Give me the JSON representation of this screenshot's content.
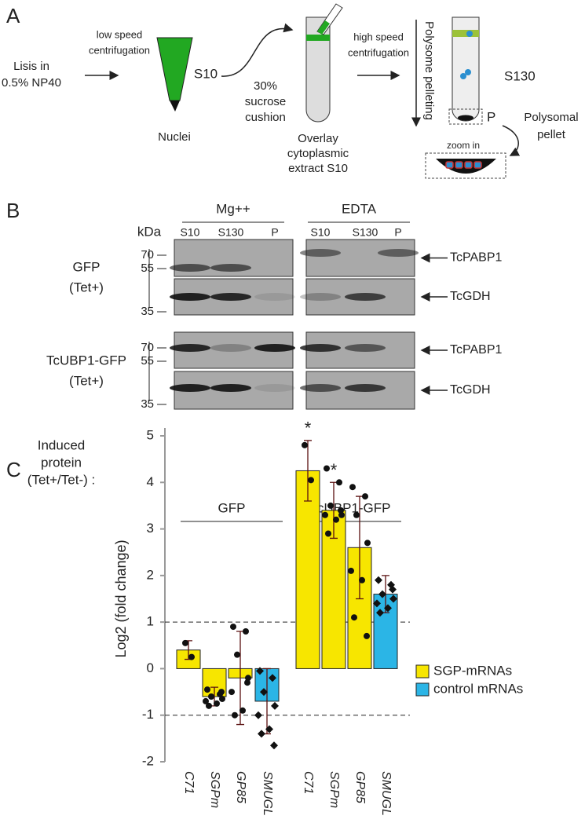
{
  "panel_a": {
    "label": "A",
    "lysis": [
      "Lisis in",
      "0.5% NP40"
    ],
    "low_speed": [
      "low speed",
      "centrifugation"
    ],
    "nuclei": "Nuclei",
    "s10": "S10",
    "cushion": [
      "30%",
      "sucrose",
      "cushion"
    ],
    "overlay": [
      "Overlay",
      "cytoplasmic",
      "extract S10"
    ],
    "high_speed": [
      "high speed",
      "centrifugation"
    ],
    "pelleting": "Polysome pelleting",
    "s130": "S130",
    "p": "P",
    "zoom": "zoom in",
    "pellet": [
      "Polysomal",
      "pellet"
    ]
  },
  "panel_b": {
    "label": "B",
    "kda": "kDa",
    "conditions": [
      "Mg++",
      "EDTA"
    ],
    "lanes": [
      "S10",
      "S130",
      "P",
      "S10",
      "S130",
      "P"
    ],
    "rows": [
      {
        "name": [
          "GFP",
          "(Tet+)"
        ],
        "markers": [
          "70",
          "55",
          "35"
        ]
      },
      {
        "name": [
          "TcUBP1-GFP",
          "(Tet+)"
        ],
        "markers": [
          "70",
          "55",
          "35"
        ]
      }
    ],
    "proteins": [
      "TcPABP1",
      "TcGDH",
      "TcPABP1",
      "TcGDH"
    ]
  },
  "chart_data": {
    "type": "bar",
    "panel_label": "C",
    "ylabel_top": [
      "Induced",
      "protein",
      "(Tet+/Tet-) :"
    ],
    "ylabel": "Log2 (fold change)",
    "groups": [
      "GFP",
      "TcUBP1-GFP"
    ],
    "categories": [
      "C71",
      "SGPm",
      "GP85",
      "SMUGL",
      "C71",
      "SGPm",
      "GP85",
      "SMUGL"
    ],
    "series": [
      {
        "name": "SGP-mRNAs",
        "color": "#f7e600",
        "values": [
          0.4,
          -0.6,
          -0.2,
          null,
          4.25,
          3.4,
          2.6,
          null
        ],
        "errors": [
          0.2,
          0.2,
          1.0,
          null,
          0.65,
          0.6,
          1.1,
          null
        ]
      },
      {
        "name": "control mRNAs",
        "color": "#2bb5e6",
        "values": [
          null,
          null,
          null,
          -0.7,
          null,
          null,
          null,
          1.6
        ],
        "errors": [
          null,
          null,
          null,
          0.7,
          null,
          null,
          null,
          0.4
        ]
      }
    ],
    "points": [
      [
        0.55,
        0.25
      ],
      [
        -0.45,
        -0.55,
        -0.6,
        -0.65,
        -0.7,
        -0.75,
        -0.8,
        -0.5
      ],
      [
        0.9,
        0.8,
        0.3,
        -0.2,
        -0.5,
        -0.9,
        -1.0,
        -0.3
      ],
      [
        -0.05,
        -0.2,
        -0.5,
        -0.8,
        -1.0,
        -1.3,
        -1.4,
        -1.65
      ],
      [
        4.8,
        4.05
      ],
      [
        4.3,
        4.0,
        3.5,
        3.3,
        3.3,
        3.2,
        2.9,
        3.4
      ],
      [
        3.9,
        3.7,
        3.3,
        2.7,
        2.1,
        1.9,
        1.1,
        0.7
      ],
      [
        1.9,
        1.8,
        1.6,
        1.5,
        1.4,
        1.3,
        1.2,
        1.7
      ]
    ],
    "annotations": [
      {
        "text": "*",
        "category": 4
      },
      {
        "text": "*",
        "category": 5
      }
    ],
    "hlines": [
      1,
      -1
    ],
    "ylim": [
      -2,
      5
    ],
    "yticks": [
      -2,
      -1,
      0,
      1,
      2,
      3,
      4,
      5
    ],
    "legend": "right"
  }
}
